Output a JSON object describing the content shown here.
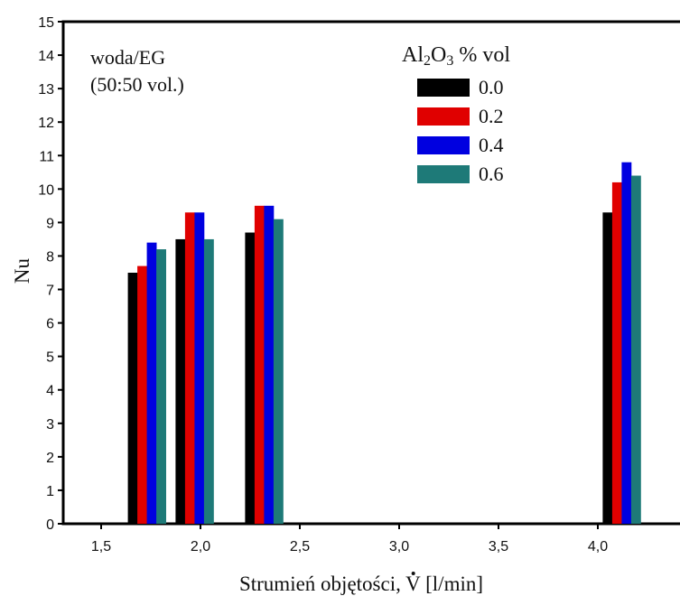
{
  "chart_data": {
    "type": "bar",
    "title": "",
    "xlabel_prefix": "Strumień objętości, ",
    "xlabel_symbol": "V",
    "xlabel_suffix": " [l/min]",
    "ylabel": "Nu",
    "x_tick_labels": [
      "1,5",
      "2,0",
      "2,5",
      "3,0",
      "3,5",
      "4,0"
    ],
    "x_tick_values": [
      1.5,
      2.0,
      2.5,
      3.0,
      3.5,
      4.0
    ],
    "xlim": [
      1.3,
      4.6
    ],
    "ylim": [
      0,
      15
    ],
    "y_ticks": [
      0,
      1,
      2,
      3,
      4,
      5,
      6,
      7,
      8,
      9,
      10,
      11,
      12,
      13,
      14,
      15
    ],
    "grid": false,
    "group_centers": [
      1.73,
      1.97,
      2.32,
      4.12
    ],
    "series": [
      {
        "name": "0.0",
        "color": "#000000",
        "values": [
          7.5,
          8.5,
          8.7,
          9.3
        ]
      },
      {
        "name": "0.2",
        "color": "#e00000",
        "values": [
          7.7,
          9.3,
          9.5,
          10.2
        ]
      },
      {
        "name": "0.4",
        "color": "#0000e0",
        "values": [
          8.4,
          9.3,
          9.5,
          10.8
        ]
      },
      {
        "name": "0.6",
        "color": "#1e7a78",
        "values": [
          8.2,
          8.5,
          9.1,
          10.4
        ]
      }
    ],
    "annotation_line1": "woda/EG",
    "annotation_line2": "(50:50 vol.)",
    "legend": {
      "placement": "top-right",
      "title_parts": {
        "a": "Al",
        "b": "2",
        "c": "O",
        "d": "3",
        "e": " % vol"
      }
    }
  }
}
